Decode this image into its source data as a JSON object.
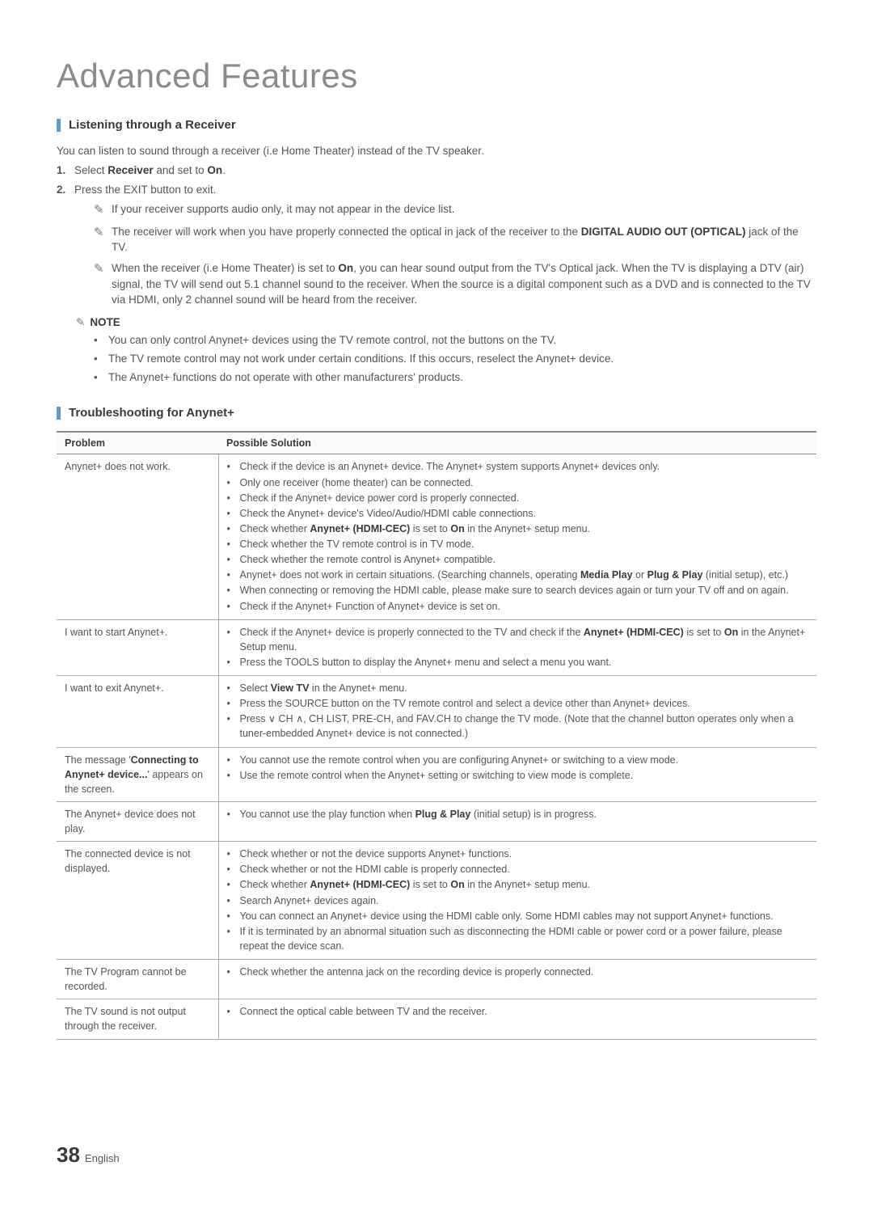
{
  "page_title": "Advanced Features",
  "section1": {
    "title": "Listening through a Receiver",
    "intro": "You can listen to sound through a receiver (i.e Home Theater) instead of the TV speaker.",
    "step1_pre": "Select ",
    "step1_b1": "Receiver",
    "step1_mid": " and set to ",
    "step1_b2": "On",
    "step1_post": ".",
    "step2": "Press the EXIT button to exit.",
    "note1": "If your receiver supports audio only, it may not appear in the device list.",
    "note2_pre": "The receiver will work when you have properly connected the optical in jack of the receiver to the ",
    "note2_b": "DIGITAL AUDIO OUT (OPTICAL)",
    "note2_post": " jack of the TV.",
    "note3_pre": "When the receiver (i.e Home Theater) is set to ",
    "note3_b": "On",
    "note3_post": ", you can hear sound output from the TV's Optical jack. When the TV is displaying a DTV (air) signal, the TV will send out 5.1 channel sound to the receiver. When the source is a digital component such as a DVD and is connected to the TV via HDMI, only 2 channel sound will be heard from the receiver."
  },
  "note_label": "NOTE",
  "dot_notes": [
    "You can only control Anynet+ devices using the TV remote control, not the buttons on the TV.",
    "The TV remote control may not work under certain conditions. If this occurs, reselect the Anynet+ device.",
    "The Anynet+ functions do not operate with other manufacturers' products."
  ],
  "section2": {
    "title": "Troubleshooting for Anynet+"
  },
  "table": {
    "headers": [
      "Problem",
      "Possible Solution"
    ],
    "rows": [
      {
        "problem": "Anynet+ does not work.",
        "solutions": [
          {
            "t": "Check if the device is an Anynet+ device. The Anynet+ system supports Anynet+ devices only."
          },
          {
            "t": "Only one receiver (home theater) can be connected."
          },
          {
            "t": "Check if the Anynet+ device power cord is properly connected."
          },
          {
            "t": "Check the Anynet+ device's Video/Audio/HDMI cable connections."
          },
          {
            "pre": "Check whether ",
            "b": "Anynet+ (HDMI-CEC)",
            "mid": " is set to ",
            "b2": "On",
            "post": " in the Anynet+ setup menu."
          },
          {
            "t": "Check whether the TV remote control is in TV mode."
          },
          {
            "t": "Check whether the remote control is Anynet+ compatible."
          },
          {
            "pre": "Anynet+ does not work in certain situations. (Searching channels, operating ",
            "b": "Media Play",
            "mid": " or ",
            "b2": "Plug & Play",
            "post": " (initial setup), etc.)"
          },
          {
            "t": "When connecting or removing the HDMI cable, please make sure to search devices again or turn your TV off and on again."
          },
          {
            "t": "Check if the Anynet+ Function of Anynet+ device is set on."
          }
        ]
      },
      {
        "problem": "I want to start Anynet+.",
        "solutions": [
          {
            "pre": "Check if the Anynet+ device is properly connected to the TV and check if the ",
            "b": "Anynet+ (HDMI-CEC)",
            "mid": " is set to ",
            "b2": "On",
            "post": " in the Anynet+ Setup menu."
          },
          {
            "t": "Press the TOOLS button to display the Anynet+ menu and select a menu you want."
          }
        ]
      },
      {
        "problem": "I want to exit Anynet+.",
        "solutions": [
          {
            "pre": "Select ",
            "b": "View TV",
            "post": " in the Anynet+ menu."
          },
          {
            "t": "Press the SOURCE button on the TV remote control and select a device other than Anynet+ devices."
          },
          {
            "t": "Press ∨ CH ∧, CH LIST, PRE-CH, and FAV.CH to change the TV mode. (Note that the channel button operates only when a tuner-embedded Anynet+ device is not connected.)"
          }
        ]
      },
      {
        "problem_pre": "The message '",
        "problem_b": "Connecting to Anynet+ device...",
        "problem_post": "' appears on the screen.",
        "solutions": [
          {
            "t": "You cannot use the remote control when you are configuring Anynet+ or switching to a view mode."
          },
          {
            "t": "Use the remote control when the Anynet+ setting or switching to view mode is complete."
          }
        ]
      },
      {
        "problem": "The Anynet+ device does not play.",
        "solutions": [
          {
            "pre": "You cannot use the play function when ",
            "b": "Plug & Play",
            "post": " (initial setup) is in progress."
          }
        ]
      },
      {
        "problem": "The connected device is not displayed.",
        "solutions": [
          {
            "t": "Check whether or not the device supports Anynet+ functions."
          },
          {
            "t": "Check whether or not the HDMI cable is properly connected."
          },
          {
            "pre": "Check whether ",
            "b": "Anynet+ (HDMI-CEC)",
            "mid": " is set to ",
            "b2": "On",
            "post": " in the Anynet+ setup menu."
          },
          {
            "t": "Search Anynet+ devices again."
          },
          {
            "t": "You can connect an Anynet+ device using the HDMI cable only. Some HDMI cables may not support Anynet+ functions."
          },
          {
            "t": "If it is terminated by an abnormal situation such as disconnecting the HDMI cable or power cord or a power failure, please repeat the device scan."
          }
        ]
      },
      {
        "problem": "The TV Program cannot be recorded.",
        "solutions": [
          {
            "t": "Check whether the antenna jack on the recording device is properly connected."
          }
        ]
      },
      {
        "problem": "The TV sound is not output through the receiver.",
        "solutions": [
          {
            "t": "Connect the optical cable between TV and the receiver."
          }
        ]
      }
    ]
  },
  "footer": {
    "page": "38",
    "lang": "English"
  }
}
